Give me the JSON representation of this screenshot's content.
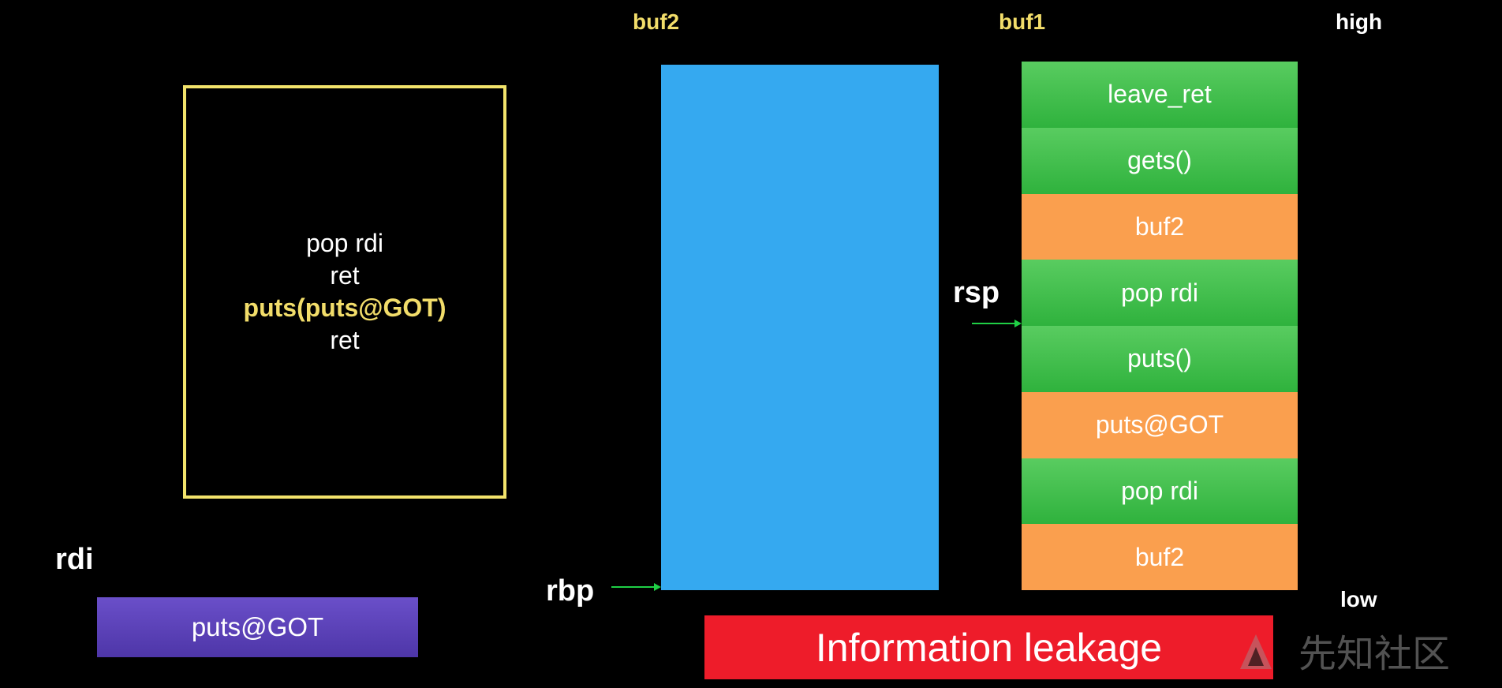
{
  "labels": {
    "buf2": "buf2",
    "buf1": "buf1",
    "high": "high",
    "low": "low",
    "rsp": "rsp",
    "rbp": "rbp",
    "rdi": "rdi"
  },
  "instruction_box": {
    "lines": [
      "pop rdi",
      "ret",
      "puts(puts@GOT)",
      "ret"
    ],
    "highlighted_line": "puts(puts@GOT)"
  },
  "rdi_value": "puts@GOT",
  "stack_buf1": [
    {
      "label": "leave_ret",
      "color": "green"
    },
    {
      "label": "gets()",
      "color": "green"
    },
    {
      "label": "buf2",
      "color": "orange"
    },
    {
      "label": "pop rdi",
      "color": "green"
    },
    {
      "label": "puts()",
      "color": "green"
    },
    {
      "label": "puts@GOT",
      "color": "orange"
    },
    {
      "label": "pop rdi",
      "color": "green"
    },
    {
      "label": "buf2",
      "color": "orange"
    }
  ],
  "banner": "Information leakage",
  "watermark": "先知社区",
  "colors": {
    "background": "#000000",
    "yellow": "#f2dd6a",
    "blue_block": "#35a9f0",
    "green": "#3fbe4a",
    "orange": "#fa9f4e",
    "purple": "#5a40b6",
    "red_banner": "#ee1c2a",
    "arrow": "#1fcf45"
  }
}
